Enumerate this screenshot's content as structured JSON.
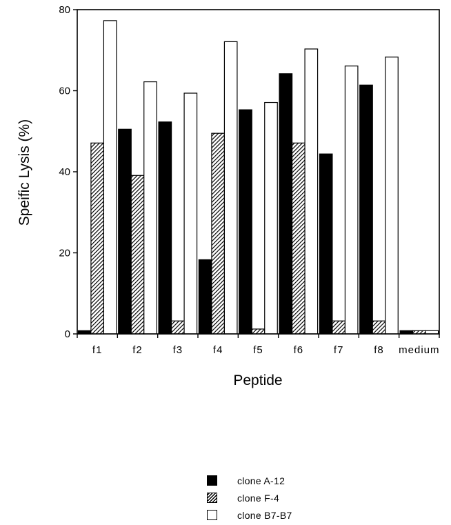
{
  "chart_data": {
    "type": "bar",
    "title": "",
    "xlabel": "Peptide",
    "ylabel": "Speific Lysis (%)",
    "ylim": [
      0,
      80
    ],
    "yticks": [
      0,
      20,
      40,
      60,
      80
    ],
    "categories": [
      "f1",
      "f2",
      "f3",
      "f4",
      "f5",
      "f6",
      "f7",
      "f8",
      "medium"
    ],
    "series": [
      {
        "name": "clone A-12",
        "pattern": "solid",
        "values": [
          0.8,
          50.5,
          52.3,
          18.3,
          55.3,
          64.2,
          44.4,
          61.4,
          0.8
        ]
      },
      {
        "name": "clone F-4",
        "pattern": "hatched",
        "values": [
          47.1,
          39.1,
          3.2,
          49.5,
          1.2,
          47.1,
          3.2,
          3.2,
          0.8
        ]
      },
      {
        "name": "clone B7-B7",
        "pattern": "open",
        "values": [
          77.3,
          62.2,
          59.4,
          72.1,
          57.1,
          70.3,
          66.1,
          68.3,
          0.8
        ]
      }
    ],
    "legend_position": "bottom",
    "grid": false
  },
  "colors": {
    "solid": "#000000",
    "outline": "#000000",
    "open": "#ffffff"
  }
}
